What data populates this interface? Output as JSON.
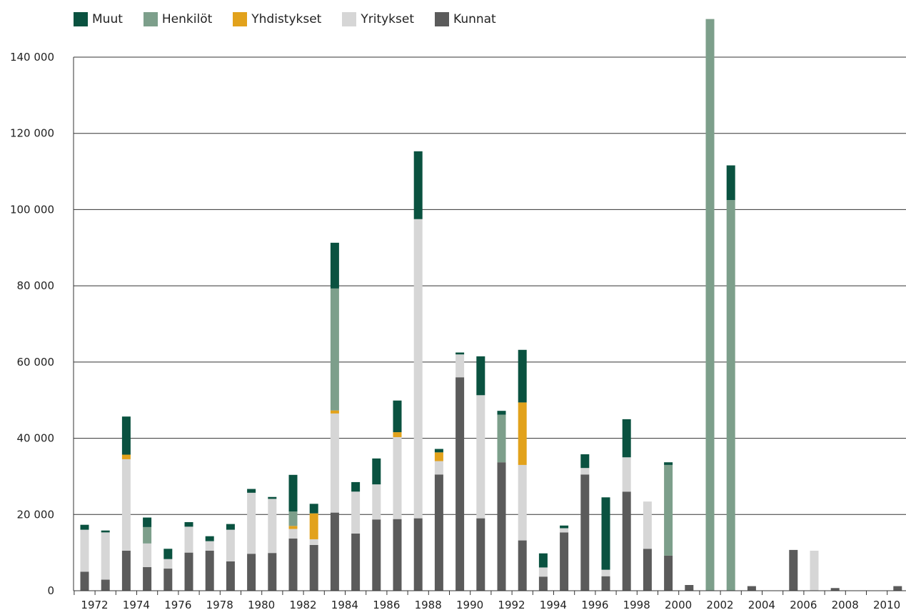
{
  "chart_data": {
    "type": "bar",
    "stacked": true,
    "title": "",
    "xlabel": "",
    "ylabel": "",
    "ylim": [
      0,
      140000
    ],
    "yticks": [
      0,
      20000,
      40000,
      60000,
      80000,
      100000,
      120000,
      140000
    ],
    "ytick_labels": [
      "0",
      "20 000",
      "40 000",
      "60 000",
      "80 000",
      "100 000",
      "120 000",
      "140 000"
    ],
    "categories": [
      1972,
      1973,
      1974,
      1975,
      1976,
      1977,
      1978,
      1979,
      1980,
      1981,
      1982,
      1983,
      1984,
      1985,
      1986,
      1987,
      1988,
      1989,
      1990,
      1991,
      1992,
      1993,
      1994,
      1995,
      1996,
      1997,
      1998,
      1999,
      2000,
      2001,
      2002,
      2003,
      2004,
      2005,
      2006,
      2007,
      2008,
      2009,
      2010,
      2011
    ],
    "xtick_labels": [
      "1972",
      "1974",
      "1976",
      "1978",
      "1980",
      "1982",
      "1984",
      "1986",
      "1988",
      "1990",
      "1992",
      "1994",
      "1996",
      "1998",
      "2000",
      "2002",
      "2004",
      "2006",
      "2008",
      "2010"
    ],
    "grid": "horizontal",
    "legend_position": "top-left",
    "series": [
      {
        "name": "Kunnat",
        "color": "#5b5b5b",
        "values": [
          5000,
          2900,
          10500,
          6200,
          5800,
          10000,
          10500,
          7700,
          9700,
          9900,
          13700,
          12000,
          20500,
          15000,
          18700,
          18800,
          19000,
          30500,
          56000,
          19000,
          33700,
          13200,
          3700,
          15300,
          30500,
          3800,
          26000,
          11000,
          9200,
          1500,
          0,
          0,
          1200,
          0,
          10700,
          0,
          700,
          0,
          0,
          1200
        ]
      },
      {
        "name": "Yritykset",
        "color": "#d6d6d6",
        "values": [
          11000,
          12400,
          24000,
          6200,
          2500,
          6800,
          2500,
          8300,
          16000,
          14200,
          2500,
          1500,
          26000,
          11000,
          9200,
          21500,
          78500,
          3500,
          6000,
          32300,
          0,
          19800,
          2400,
          1100,
          1700,
          1700,
          9000,
          12400,
          0,
          0,
          0,
          0,
          0,
          0,
          0,
          10500,
          0,
          0,
          0,
          0
        ]
      },
      {
        "name": "Yhdistykset",
        "color": "#e2a21c",
        "values": [
          0,
          0,
          1200,
          0,
          0,
          0,
          0,
          0,
          0,
          0,
          800,
          6800,
          800,
          0,
          0,
          1300,
          0,
          2300,
          0,
          0,
          0,
          16400,
          0,
          0,
          0,
          0,
          0,
          0,
          0,
          0,
          0,
          0,
          0,
          0,
          0,
          0,
          0,
          0,
          0,
          0
        ]
      },
      {
        "name": "Henkilöt",
        "color": "#7d9f8b",
        "values": [
          0,
          0,
          0,
          4300,
          0,
          0,
          0,
          0,
          0,
          0,
          3800,
          0,
          32000,
          0,
          0,
          0,
          0,
          0,
          0,
          0,
          12500,
          0,
          0,
          0,
          0,
          0,
          0,
          0,
          23800,
          0,
          150000,
          102500,
          0,
          0,
          0,
          0,
          0,
          0,
          0,
          0
        ]
      },
      {
        "name": "Muut",
        "color": "#0a5240",
        "values": [
          1300,
          500,
          10000,
          2500,
          2700,
          1200,
          1300,
          1500,
          1000,
          500,
          9600,
          2500,
          12000,
          2500,
          6800,
          8300,
          17800,
          900,
          500,
          10200,
          1000,
          13800,
          3700,
          700,
          3600,
          19000,
          10000,
          0,
          700,
          0,
          0,
          9100,
          0,
          0,
          0,
          0,
          0,
          0,
          0,
          0
        ]
      }
    ]
  },
  "legend": {
    "items": [
      {
        "label": "Muut",
        "color": "#0a5240"
      },
      {
        "label": "Henkilöt",
        "color": "#7d9f8b"
      },
      {
        "label": "Yhdistykset",
        "color": "#e2a21c"
      },
      {
        "label": "Yritykset",
        "color": "#d6d6d6"
      },
      {
        "label": "Kunnat",
        "color": "#5b5b5b"
      }
    ]
  }
}
